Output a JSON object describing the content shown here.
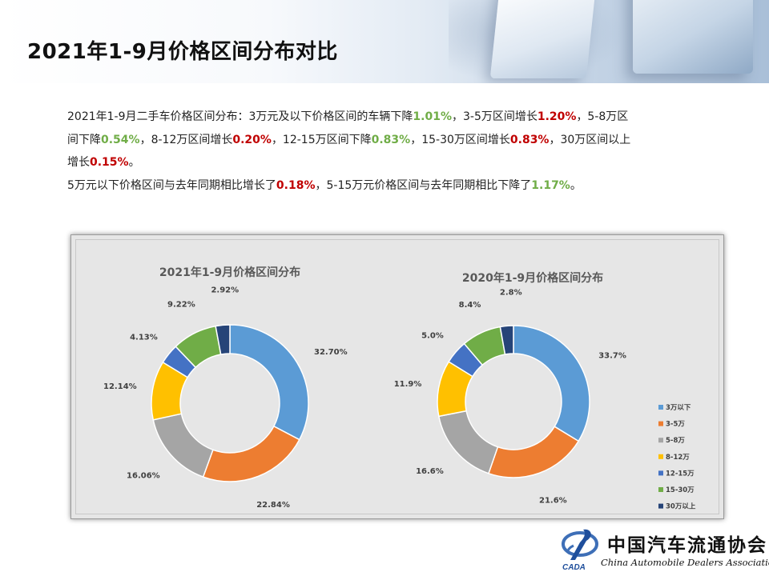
{
  "page": {
    "title": "2021年1-9月价格区间分布对比"
  },
  "summary": {
    "line1": [
      {
        "t": "2021年1-9月二手车价格区间分布：3万元及以下价格区间的车辆下降",
        "c": ""
      },
      {
        "t": "1.01%",
        "c": "g"
      },
      {
        "t": "，3-5万区间增长",
        "c": ""
      },
      {
        "t": "1.20%",
        "c": "r"
      },
      {
        "t": "，5-8万区",
        "c": ""
      }
    ],
    "line2": [
      {
        "t": "间下降",
        "c": ""
      },
      {
        "t": "0.54%",
        "c": "g"
      },
      {
        "t": "，8-12万区间增长",
        "c": ""
      },
      {
        "t": "0.20%",
        "c": "r"
      },
      {
        "t": "，12-15万区间下降",
        "c": ""
      },
      {
        "t": "0.83%",
        "c": "g"
      },
      {
        "t": "，15-30万区间增长",
        "c": ""
      },
      {
        "t": "0.83%",
        "c": "r"
      },
      {
        "t": "，30万区间以上",
        "c": ""
      }
    ],
    "line3": [
      {
        "t": "增长",
        "c": ""
      },
      {
        "t": "0.15%",
        "c": "r"
      },
      {
        "t": "。",
        "c": ""
      }
    ],
    "line4": [
      {
        "t": "5万元以下价格区间与去年同期相比增长了",
        "c": ""
      },
      {
        "t": "0.18%",
        "c": "r"
      },
      {
        "t": "，5-15万元价格区间与去年同期相比下降了",
        "c": ""
      },
      {
        "t": "1.17%",
        "c": "g"
      },
      {
        "t": "。",
        "c": ""
      }
    ]
  },
  "colors": {
    "3万以下": "#5b9bd5",
    "3-5万": "#ed7d31",
    "5-8万": "#a5a5a5",
    "8-12万": "#ffc000",
    "12-15万": "#4472c4",
    "15-30万": "#70ad47",
    "30万以上": "#264478",
    "highlight_green": "#70ad47",
    "highlight_red": "#c00000",
    "chart_background": "#e6e6e6"
  },
  "chart_data": [
    {
      "type": "pie",
      "title": "2021年1-9月价格区间分布",
      "categories": [
        "3万以下",
        "3-5万",
        "5-8万",
        "8-12万",
        "12-15万",
        "15-30万",
        "30万以上"
      ],
      "values": [
        32.7,
        22.84,
        16.06,
        12.14,
        4.13,
        9.22,
        2.92
      ],
      "labels": [
        "32.70%",
        "22.84%",
        "16.06%",
        "12.14%",
        "4.13%",
        "9.22%",
        "2.92%"
      ],
      "style": "donut"
    },
    {
      "type": "pie",
      "title": "2020年1-9月价格区间分布",
      "categories": [
        "3万以下",
        "3-5万",
        "5-8万",
        "8-12万",
        "12-15万",
        "15-30万",
        "30万以上"
      ],
      "values": [
        33.7,
        21.6,
        16.6,
        11.9,
        5.0,
        8.4,
        2.8
      ],
      "labels": [
        "33.7%",
        "21.6%",
        "16.6%",
        "11.9%",
        "5.0%",
        "8.4%",
        "2.8%"
      ],
      "style": "donut",
      "legend": "right"
    }
  ],
  "legend": {
    "items": [
      "3万以下",
      "3-5万",
      "5-8万",
      "8-12万",
      "12-15万",
      "15-30万",
      "30万以上"
    ]
  },
  "logo": {
    "mark_text": "CADA",
    "name_cn": "中国汽车流通协会",
    "name_en": "China Automobile Dealers Association"
  }
}
